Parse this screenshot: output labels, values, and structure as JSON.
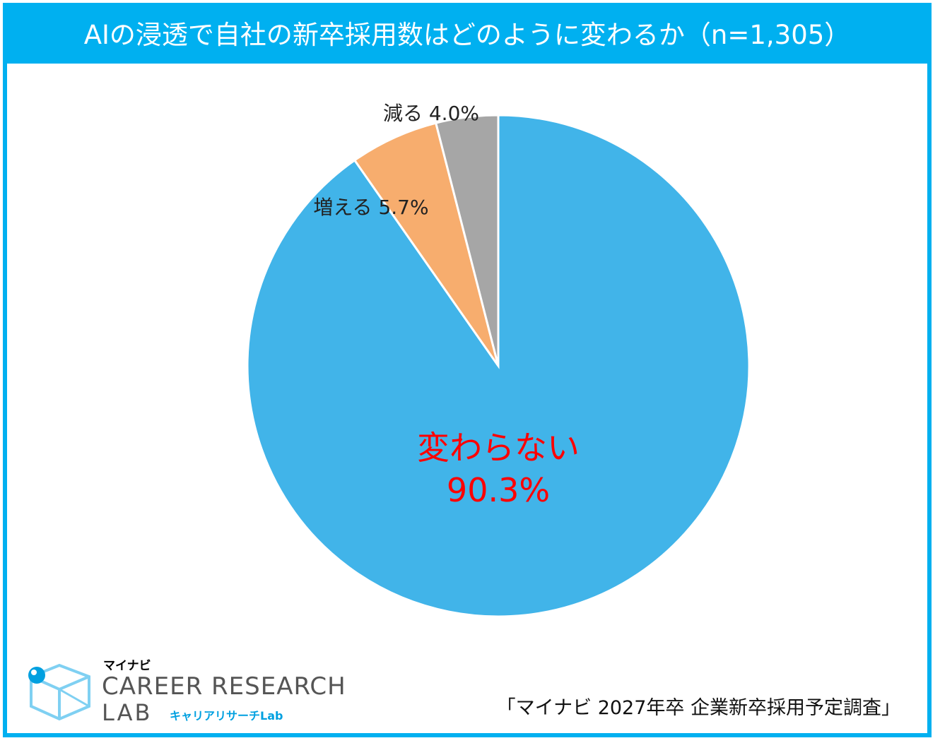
{
  "title": "AIの浸透で自社の新卒採用数はどのように変わるか（n=1,305）",
  "chart_data": {
    "type": "pie",
    "title": "AIの浸透で自社の新卒採用数はどのように変わるか（n=1,305）",
    "n": 1305,
    "start": "12 o'clock",
    "direction": "clockwise",
    "slices": [
      {
        "label": "変わらない",
        "value": 90.3,
        "value_text": "90.3%",
        "color": "#41b4e9"
      },
      {
        "label": "増える",
        "value": 5.7,
        "value_text": "5.7%",
        "color": "#f7ad6e"
      },
      {
        "label": "減る",
        "value": 4.0,
        "value_text": "4.0%",
        "color": "#a6a6a6"
      }
    ]
  },
  "logo": {
    "brand": "マイナビ",
    "line1": "CAREER RESEARCH",
    "line2": "LAB",
    "sub": "キャリアリサーチLab"
  },
  "source": "「マイナビ 2027年卒 企業新卒採用予定調査」"
}
